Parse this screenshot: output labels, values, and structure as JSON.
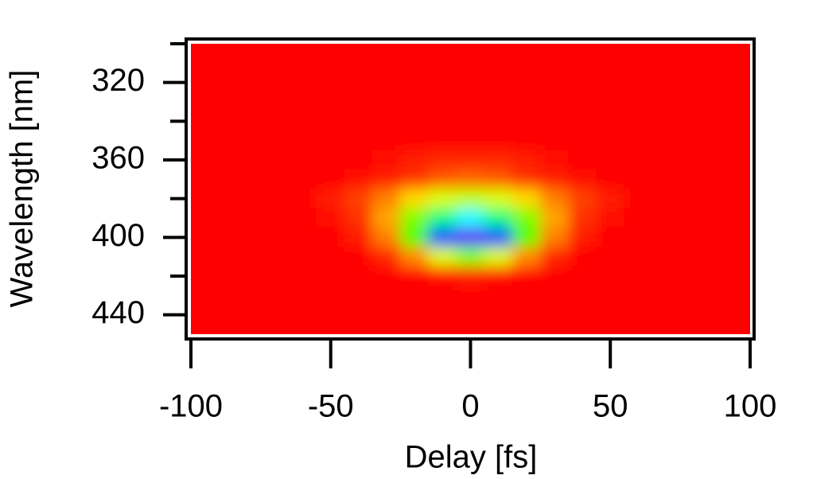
{
  "chart_data": {
    "type": "heatmap",
    "x_label": "Delay [fs]",
    "y_label": "Wavelength [nm]",
    "x": [
      -100,
      -90,
      -80,
      -70,
      -60,
      -50,
      -40,
      -30,
      -20,
      -10,
      0,
      10,
      20,
      30,
      40,
      50,
      60,
      70,
      80,
      90,
      100
    ],
    "y": [
      300,
      310,
      320,
      330,
      340,
      350,
      360,
      370,
      380,
      390,
      400,
      410,
      420,
      430,
      440,
      450
    ],
    "z": [
      [
        0,
        0,
        0,
        0,
        0,
        0,
        0,
        0,
        0,
        0,
        0,
        0,
        0,
        0,
        0,
        0,
        0,
        0,
        0,
        0,
        0
      ],
      [
        0,
        0,
        0,
        0,
        0,
        0,
        0,
        0,
        0,
        0,
        0,
        0,
        0,
        0,
        0,
        0,
        0,
        0,
        0,
        0,
        0
      ],
      [
        0,
        0,
        0,
        0,
        0,
        0,
        0,
        0,
        0,
        0,
        0,
        0,
        0,
        0,
        0,
        0,
        0,
        0,
        0,
        0,
        0
      ],
      [
        0,
        0,
        0,
        0,
        0,
        0,
        0,
        0,
        0,
        0,
        0,
        0,
        0,
        0,
        0,
        0,
        0,
        0,
        0,
        0,
        0
      ],
      [
        0,
        0,
        0,
        0,
        0,
        0,
        0,
        0,
        0,
        0,
        0,
        0,
        0,
        0,
        0,
        0,
        0,
        0,
        0,
        0,
        0
      ],
      [
        0,
        0,
        0,
        0,
        0,
        0,
        0,
        0,
        0,
        0,
        0,
        0,
        0,
        0,
        0,
        0,
        0,
        0,
        0,
        0,
        0
      ],
      [
        0,
        0,
        0,
        0,
        0,
        0,
        0,
        0.01,
        0.02,
        0.03,
        0.03,
        0.03,
        0.02,
        0.01,
        0,
        0,
        0,
        0,
        0,
        0,
        0
      ],
      [
        0,
        0,
        0,
        0,
        0,
        0,
        0.01,
        0.02,
        0.04,
        0.07,
        0.08,
        0.07,
        0.04,
        0.02,
        0.01,
        0,
        0,
        0,
        0,
        0,
        0
      ],
      [
        0,
        0,
        0,
        0,
        0,
        0.02,
        0.05,
        0.1,
        0.17,
        0.23,
        0.25,
        0.23,
        0.17,
        0.1,
        0.05,
        0.02,
        0,
        0,
        0,
        0,
        0
      ],
      [
        0,
        0,
        0,
        0,
        0,
        0.01,
        0.04,
        0.13,
        0.3,
        0.5,
        0.6,
        0.5,
        0.3,
        0.13,
        0.04,
        0.01,
        0,
        0,
        0,
        0,
        0
      ],
      [
        0,
        0,
        0,
        0,
        0,
        0,
        0.02,
        0.1,
        0.34,
        0.74,
        0.95,
        0.74,
        0.34,
        0.1,
        0.02,
        0,
        0,
        0,
        0,
        0,
        0
      ],
      [
        0,
        0,
        0,
        0,
        0,
        0,
        0,
        0.03,
        0.11,
        0.23,
        0.3,
        0.23,
        0.11,
        0.03,
        0,
        0,
        0,
        0,
        0,
        0,
        0
      ],
      [
        0,
        0,
        0,
        0,
        0,
        0,
        0,
        0,
        0,
        0.01,
        0.02,
        0.01,
        0,
        0,
        0,
        0,
        0,
        0,
        0,
        0,
        0
      ],
      [
        0,
        0,
        0,
        0,
        0,
        0,
        0,
        0,
        0,
        0,
        0,
        0,
        0,
        0,
        0,
        0,
        0,
        0,
        0,
        0,
        0
      ],
      [
        0,
        0,
        0,
        0,
        0,
        0,
        0,
        0,
        0,
        0,
        0,
        0,
        0,
        0,
        0,
        0,
        0,
        0,
        0,
        0,
        0
      ],
      [
        0,
        0,
        0,
        0,
        0,
        0,
        0,
        0,
        0,
        0,
        0,
        0,
        0,
        0,
        0,
        0,
        0,
        0,
        0,
        0,
        0
      ]
    ],
    "zlim": [
      0,
      1
    ],
    "colormap": [
      "#ff0000",
      "#ffff00",
      "#00ff00",
      "#00ffff",
      "#0000ff",
      "#8000ff"
    ],
    "xlim": [
      -100,
      100
    ],
    "xticks": [
      -100,
      -50,
      0,
      50,
      100
    ],
    "ylim": [
      450,
      300
    ],
    "yticks": [
      320,
      360,
      400,
      440
    ],
    "yminorticks": [
      300,
      340,
      380,
      420
    ]
  }
}
